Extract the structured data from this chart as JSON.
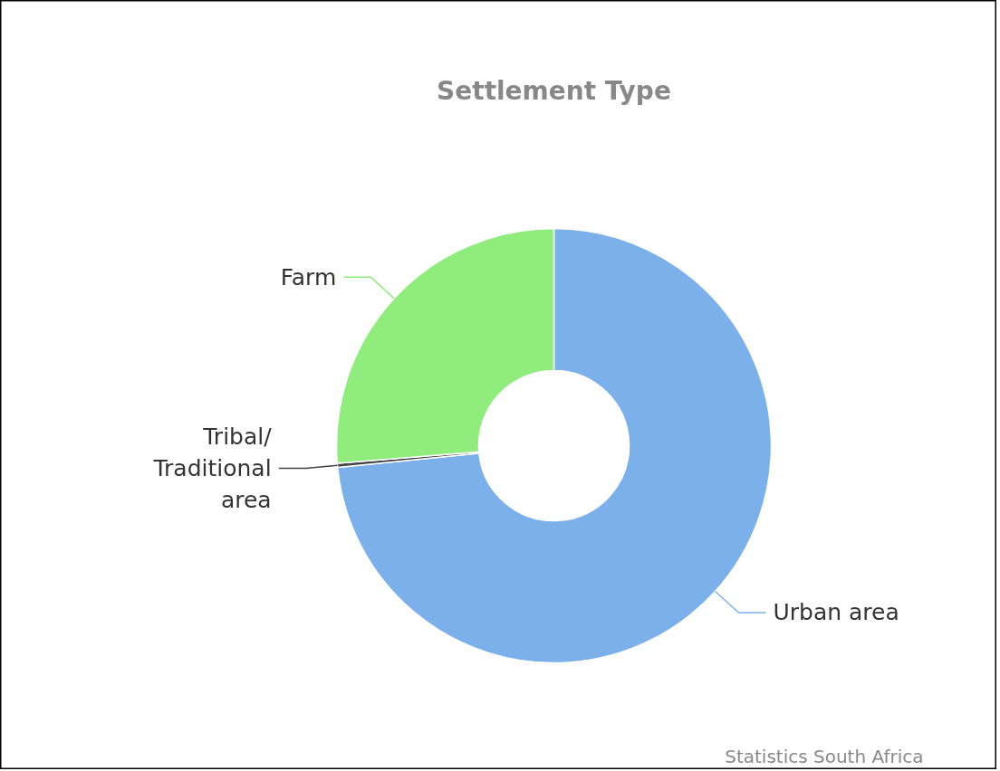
{
  "chart_data": {
    "type": "donut",
    "title": "Settlement Type",
    "categories": [
      "Urban area",
      "Tribal/Traditional area",
      "Farm"
    ],
    "values": [
      73.4,
      0.3,
      26.3
    ],
    "colors": [
      "#7cb0ea",
      "#434348",
      "#90ed7d"
    ],
    "annotations": [
      "Statistics South Africa"
    ]
  }
}
